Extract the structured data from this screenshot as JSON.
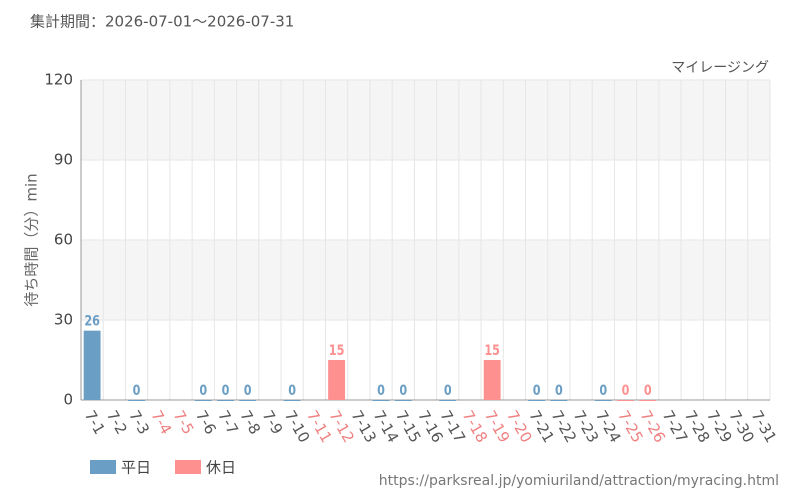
{
  "chart_data": {
    "type": "bar",
    "subtitle": "集計期間：2026-07-01～2026-07-31",
    "title": "マイレージング",
    "y_label": "待ち時間（分）min",
    "source": "https://parksreal.jp/yomiuriland/attraction/myracing.html",
    "categories": [
      "7-1",
      "7-2",
      "7-3",
      "7-4",
      "7-5",
      "7-6",
      "7-7",
      "7-8",
      "7-9",
      "7-10",
      "7-11",
      "7-12",
      "7-13",
      "7-14",
      "7-15",
      "7-16",
      "7-17",
      "7-18",
      "7-19",
      "7-20",
      "7-21",
      "7-22",
      "7-23",
      "7-24",
      "7-25",
      "7-26",
      "7-27",
      "7-28",
      "7-29",
      "7-30",
      "7-31"
    ],
    "category_colors": [
      "#555555",
      "#555555",
      "#555555",
      "#f08080",
      "#f08080",
      "#555555",
      "#555555",
      "#555555",
      "#555555",
      "#555555",
      "#f08080",
      "#f08080",
      "#555555",
      "#555555",
      "#555555",
      "#555555",
      "#555555",
      "#f08080",
      "#f08080",
      "#f08080",
      "#555555",
      "#555555",
      "#555555",
      "#555555",
      "#f08080",
      "#f08080",
      "#555555",
      "#555555",
      "#555555",
      "#555555",
      "#555555"
    ],
    "series": [
      {
        "name": "平日",
        "color": "#6a9ec5",
        "values": [
          26,
          null,
          0,
          null,
          null,
          0,
          0,
          0,
          null,
          0,
          null,
          null,
          null,
          0,
          0,
          null,
          0,
          null,
          null,
          null,
          0,
          0,
          null,
          0,
          null,
          null,
          null,
          null,
          null,
          null,
          null
        ]
      },
      {
        "name": "休日",
        "color": "#ff9090",
        "values": [
          null,
          null,
          null,
          null,
          null,
          null,
          null,
          null,
          null,
          null,
          null,
          15,
          null,
          null,
          null,
          null,
          null,
          null,
          15,
          null,
          null,
          null,
          null,
          null,
          0,
          0,
          null,
          null,
          null,
          null,
          null
        ]
      }
    ],
    "ylim": [
      0,
      120
    ],
    "yticks": [
      0,
      30,
      60,
      90,
      120
    ],
    "grid": true
  }
}
